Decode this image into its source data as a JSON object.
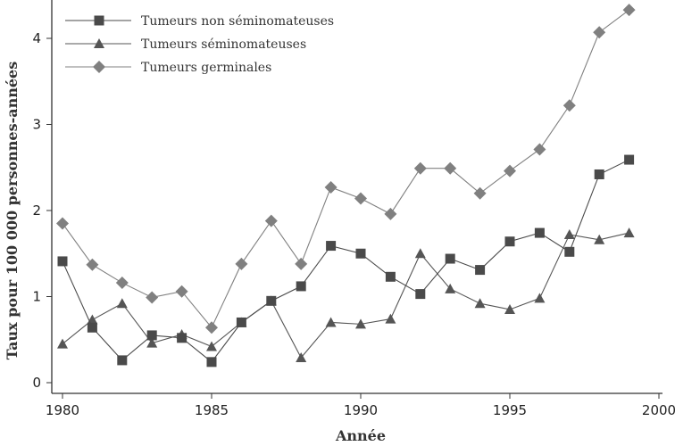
{
  "chart_data": {
    "type": "line",
    "title": "",
    "xlabel": "Année",
    "ylabel": "Taux pour 100 000 personnes-années",
    "xlim": [
      1980,
      2000
    ],
    "ylim": [
      0,
      4.4
    ],
    "xticks": [
      "1980",
      "1985",
      "1990",
      "1995",
      "2000"
    ],
    "yticks": [
      "0",
      "1",
      "2",
      "3",
      "4"
    ],
    "grid": false,
    "legend_position": "top-left",
    "x": [
      1980,
      1981,
      1982,
      1983,
      1984,
      1985,
      1986,
      1987,
      1988,
      1989,
      1990,
      1991,
      1992,
      1993,
      1994,
      1995,
      1996,
      1997,
      1998,
      1999
    ],
    "series": [
      {
        "name": "Tumeurs non séminomateuses",
        "marker": "square",
        "color": "#4a4a4a",
        "values": [
          1.41,
          0.64,
          0.26,
          0.55,
          0.52,
          0.24,
          0.7,
          0.95,
          1.12,
          1.59,
          1.5,
          1.23,
          1.03,
          1.44,
          1.31,
          1.64,
          1.74,
          1.52,
          2.42,
          2.59
        ]
      },
      {
        "name": "Tumeurs séminomateuses",
        "marker": "triangle",
        "color": "#555555",
        "values": [
          0.45,
          0.73,
          0.92,
          0.46,
          0.56,
          0.42,
          0.7,
          0.95,
          0.29,
          0.7,
          0.68,
          0.74,
          1.5,
          1.09,
          0.92,
          0.85,
          0.98,
          1.72,
          1.66,
          1.74
        ]
      },
      {
        "name": "Tumeurs germinales",
        "marker": "diamond",
        "color": "#808080",
        "values": [
          1.85,
          1.37,
          1.16,
          0.99,
          1.06,
          0.64,
          1.38,
          1.88,
          1.38,
          2.27,
          2.14,
          1.96,
          2.49,
          2.49,
          2.2,
          2.46,
          2.71,
          3.22,
          4.07,
          4.33
        ]
      }
    ]
  }
}
